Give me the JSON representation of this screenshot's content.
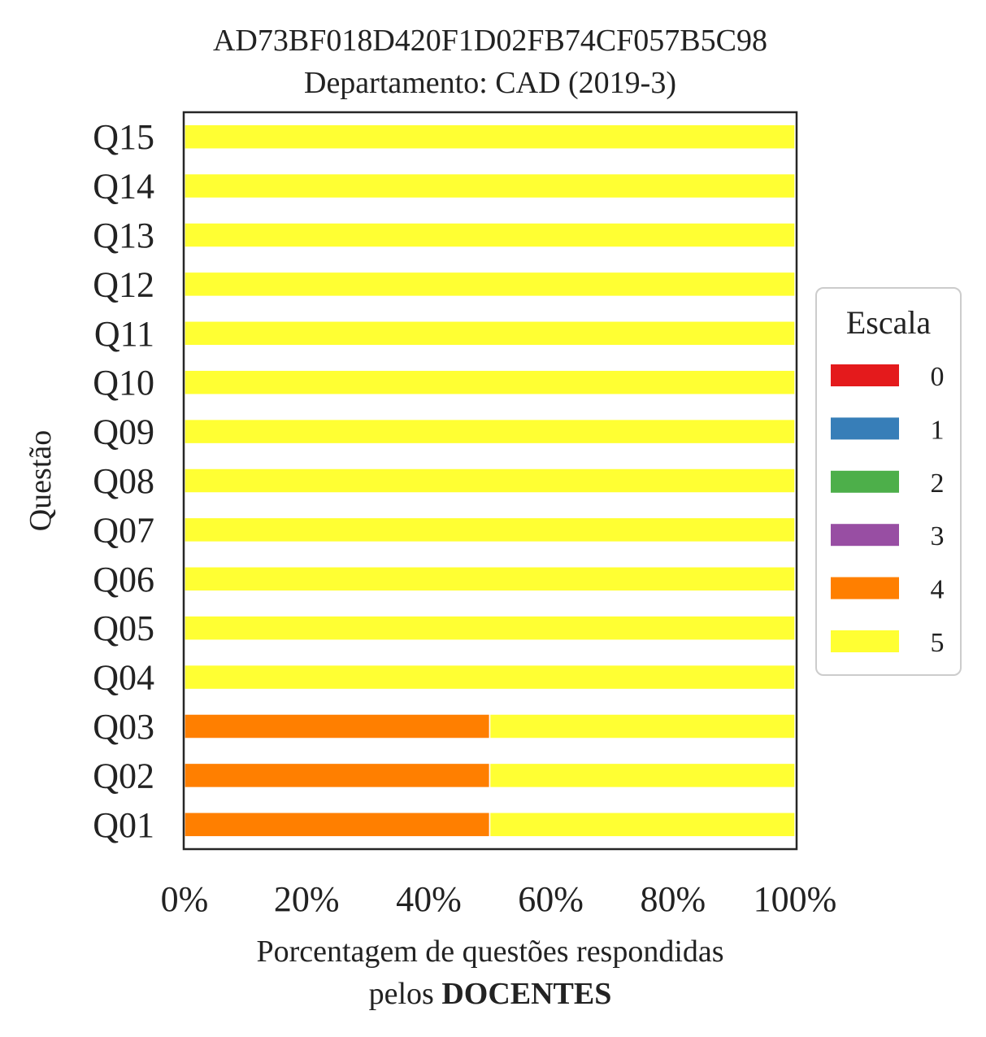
{
  "chart_data": {
    "type": "bar",
    "orientation": "horizontal",
    "stacked": true,
    "title": "AD73BF018D420F1D02FB74CF057B5C98",
    "subtitle": "Departamento: CAD (2019-3)",
    "xlabel_line1": "Porcentagem de questões respondidas",
    "xlabel_line2_prefix": "pelos ",
    "xlabel_line2_bold": "DOCENTES",
    "ylabel": "Questão",
    "xlim": [
      0,
      100
    ],
    "x_ticks": [
      "0%",
      "20%",
      "40%",
      "60%",
      "80%",
      "100%"
    ],
    "grid": false,
    "categories": [
      "Q01",
      "Q02",
      "Q03",
      "Q04",
      "Q05",
      "Q06",
      "Q07",
      "Q08",
      "Q09",
      "Q10",
      "Q11",
      "Q12",
      "Q13",
      "Q14",
      "Q15"
    ],
    "legend": {
      "title": "Escala",
      "placement": "center-right"
    },
    "series": [
      {
        "name": "0",
        "color": "#e41a1c",
        "values": [
          0,
          0,
          0,
          0,
          0,
          0,
          0,
          0,
          0,
          0,
          0,
          0,
          0,
          0,
          0
        ]
      },
      {
        "name": "1",
        "color": "#377eb8",
        "values": [
          0,
          0,
          0,
          0,
          0,
          0,
          0,
          0,
          0,
          0,
          0,
          0,
          0,
          0,
          0
        ]
      },
      {
        "name": "2",
        "color": "#4daf4a",
        "values": [
          0,
          0,
          0,
          0,
          0,
          0,
          0,
          0,
          0,
          0,
          0,
          0,
          0,
          0,
          0
        ]
      },
      {
        "name": "3",
        "color": "#984ea3",
        "values": [
          0,
          0,
          0,
          0,
          0,
          0,
          0,
          0,
          0,
          0,
          0,
          0,
          0,
          0,
          0
        ]
      },
      {
        "name": "4",
        "color": "#ff7f00",
        "values": [
          50,
          50,
          50,
          0,
          0,
          0,
          0,
          0,
          0,
          0,
          0,
          0,
          0,
          0,
          0
        ]
      },
      {
        "name": "5",
        "color": "#ffff33",
        "values": [
          50,
          50,
          50,
          100,
          100,
          100,
          100,
          100,
          100,
          100,
          100,
          100,
          100,
          100,
          100
        ]
      }
    ]
  }
}
